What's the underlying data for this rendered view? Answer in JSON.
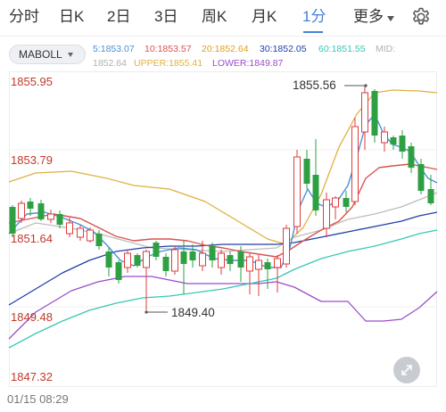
{
  "tabs": [
    {
      "label": "分时"
    },
    {
      "label": "日K"
    },
    {
      "label": "2日"
    },
    {
      "label": "3日"
    },
    {
      "label": "周K"
    },
    {
      "label": "月K"
    },
    {
      "label": "1分",
      "active": true
    },
    {
      "label": "更多"
    }
  ],
  "indicator": {
    "selector": "MABOLL",
    "ma5": "5:1853.07",
    "ma10": "10:1853.57",
    "ma20": "20:1852.64",
    "ma30": "30:1852.05",
    "ma60": "60:1851.55",
    "mid_label": "MID:",
    "mid_value": "1852.64",
    "upper": "UPPER:1855.41",
    "lower": "LOWER:1849.87"
  },
  "colors": {
    "up": "#e03b3b",
    "down": "#2ea043",
    "ma5": "#4a90d9",
    "ma10": "#d9534f",
    "ma20": "#e0a020",
    "ma30": "#1f3fa8",
    "ma60": "#37c8b4",
    "mid": "#bdbdbd",
    "upper": "#e0b040",
    "lower": "#9b4dca",
    "active_tab": "#4a7fd6",
    "axis_label": "#c0392b"
  },
  "y_axis": {
    "labels": [
      "1855.95",
      "1853.79",
      "1851.64",
      "1849.48",
      "1847.32"
    ]
  },
  "annotations": {
    "high": "1855.56",
    "low": "1849.40"
  },
  "footer": {
    "time": "01/15 08:29"
  },
  "icons": {
    "settings": "gear-icon",
    "expand": "expand-icon"
  }
}
